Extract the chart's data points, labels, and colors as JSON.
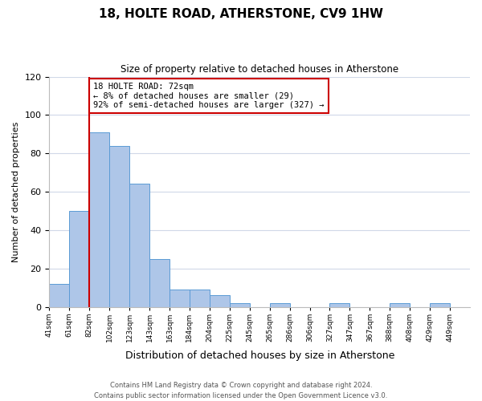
{
  "title": "18, HOLTE ROAD, ATHERSTONE, CV9 1HW",
  "subtitle": "Size of property relative to detached houses in Atherstone",
  "xlabel": "Distribution of detached houses by size in Atherstone",
  "ylabel": "Number of detached properties",
  "bin_labels": [
    "41sqm",
    "61sqm",
    "82sqm",
    "102sqm",
    "123sqm",
    "143sqm",
    "163sqm",
    "184sqm",
    "204sqm",
    "225sqm",
    "245sqm",
    "265sqm",
    "286sqm",
    "306sqm",
    "327sqm",
    "347sqm",
    "367sqm",
    "388sqm",
    "408sqm",
    "429sqm",
    "449sqm"
  ],
  "bar_heights": [
    12,
    50,
    91,
    84,
    64,
    25,
    9,
    9,
    6,
    2,
    0,
    2,
    0,
    0,
    2,
    0,
    0,
    2,
    0,
    2,
    0
  ],
  "bar_color": "#aec6e8",
  "bar_edge_color": "#5b9bd5",
  "property_line_color": "#cc0000",
  "ylim": [
    0,
    120
  ],
  "yticks": [
    0,
    20,
    40,
    60,
    80,
    100,
    120
  ],
  "annotation_text": "18 HOLTE ROAD: 72sqm\n← 8% of detached houses are smaller (29)\n92% of semi-detached houses are larger (327) →",
  "annotation_box_color": "#ffffff",
  "annotation_box_edge_color": "#cc0000",
  "footer_text": "Contains HM Land Registry data © Crown copyright and database right 2024.\nContains public sector information licensed under the Open Government Licence v3.0.",
  "background_color": "#ffffff",
  "grid_color": "#d0d8e8"
}
